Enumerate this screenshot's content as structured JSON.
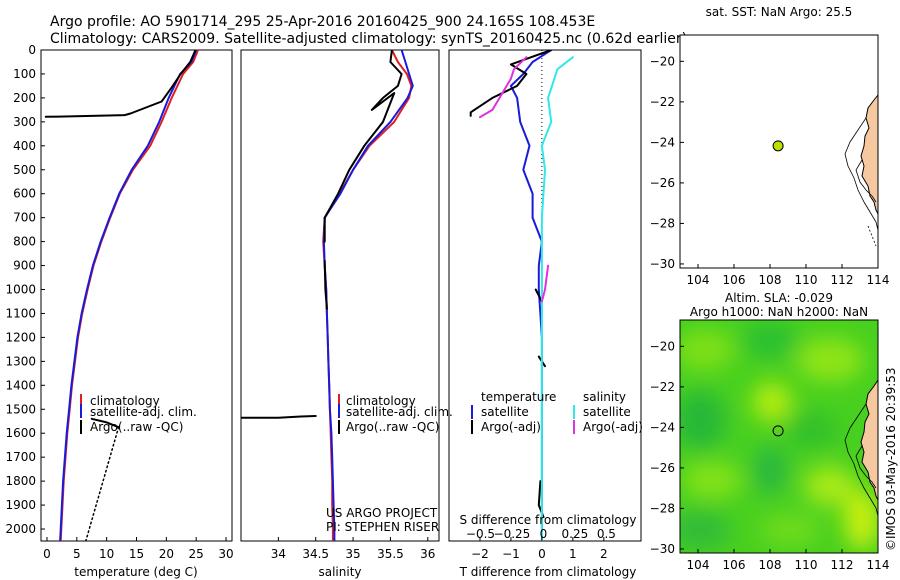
{
  "header": {
    "title_line1": "Argo profile: AO 5901714_295 25-Apr-2016 20160425_900 24.165S 108.453E",
    "title_line2": "Climatology: CARS2009. Satellite-adjusted climatology: synTS_20160425.nc (0.62d earlier)"
  },
  "side_text": "©IMOS 03-May-2016 20:39:53",
  "colors": {
    "climatology": "#e02020",
    "satellite": "#1a1adc",
    "argo": "#000000",
    "satellite_salinity": "#30e8e8",
    "argo_salinity_adj": "#e030e0",
    "land": "#f5c8a0",
    "marker": "#b8e000"
  },
  "chart_data": [
    {
      "id": "temperature",
      "type": "line",
      "xlabel": "temperature (deg C)",
      "xlim": [
        -1,
        31
      ],
      "ylim": [
        2050,
        0
      ],
      "xticks": [
        0,
        5,
        10,
        15,
        20,
        25,
        30
      ],
      "yticks": [
        0,
        100,
        200,
        300,
        400,
        500,
        600,
        700,
        800,
        900,
        1000,
        1100,
        1200,
        1300,
        1400,
        1500,
        1600,
        1700,
        1800,
        1900,
        2000
      ],
      "legend": [
        "climatology",
        "satellite-adj. clim.",
        "Argo(..raw -QC)"
      ],
      "series": [
        {
          "key": "clim",
          "points": [
            [
              25.3,
              0
            ],
            [
              24.5,
              50
            ],
            [
              22.8,
              100
            ],
            [
              20.9,
              200
            ],
            [
              19.2,
              300
            ],
            [
              17.3,
              400
            ],
            [
              14.4,
              500
            ],
            [
              12.2,
              600
            ],
            [
              10.6,
              700
            ],
            [
              9.1,
              800
            ],
            [
              7.8,
              900
            ],
            [
              6.8,
              1000
            ],
            [
              5.9,
              1100
            ],
            [
              5.2,
              1200
            ],
            [
              4.7,
              1300
            ],
            [
              4.2,
              1400
            ],
            [
              3.8,
              1500
            ],
            [
              3.4,
              1600
            ],
            [
              3.1,
              1700
            ],
            [
              2.8,
              1800
            ],
            [
              2.6,
              1900
            ],
            [
              2.4,
              2000
            ],
            [
              2.3,
              2050
            ]
          ]
        },
        {
          "key": "sat",
          "points": [
            [
              25.0,
              0
            ],
            [
              24.2,
              50
            ],
            [
              22.3,
              100
            ],
            [
              20.4,
              200
            ],
            [
              18.8,
              300
            ],
            [
              16.9,
              400
            ],
            [
              14.2,
              500
            ],
            [
              12.1,
              600
            ],
            [
              10.5,
              700
            ],
            [
              9.0,
              800
            ],
            [
              7.7,
              900
            ],
            [
              6.7,
              1000
            ],
            [
              5.8,
              1100
            ],
            [
              5.1,
              1200
            ],
            [
              4.6,
              1300
            ],
            [
              4.1,
              1400
            ],
            [
              3.7,
              1500
            ],
            [
              3.3,
              1600
            ],
            [
              3.0,
              1700
            ],
            [
              2.7,
              1800
            ],
            [
              2.5,
              1900
            ],
            [
              2.3,
              2000
            ],
            [
              2.2,
              2050
            ]
          ]
        },
        {
          "key": "argo",
          "points": [
            [
              24.8,
              5
            ],
            [
              24.0,
              50
            ],
            [
              22.4,
              100
            ],
            [
              20.8,
              160
            ],
            [
              19.2,
              215
            ],
            [
              14.0,
              265
            ],
            [
              13.0,
              272
            ],
            [
              2.0,
              278
            ],
            [
              -0.2,
              279
            ]
          ]
        },
        {
          "key": "argo",
          "points": [
            [
              7.5,
              1540
            ],
            [
              10.0,
              1555
            ],
            [
              12.0,
              1575
            ]
          ]
        },
        {
          "key": "argo_dotted",
          "points": [
            [
              12.0,
              1575
            ],
            [
              6.5,
              2050
            ]
          ]
        }
      ]
    },
    {
      "id": "salinity",
      "type": "line",
      "xlabel": "salinity",
      "xlim": [
        33.5,
        36.15
      ],
      "ylim": [
        2050,
        0
      ],
      "xticks": [
        34,
        34.5,
        35,
        35.5,
        36
      ],
      "legend": [
        "climatology",
        "satellite-adj. clim.",
        "Argo(..raw -QC)"
      ],
      "annotation": [
        "US ARGO PROJECT",
        "PI: STEPHEN RISER"
      ],
      "series": [
        {
          "key": "clim",
          "points": [
            [
              35.52,
              0
            ],
            [
              35.6,
              50
            ],
            [
              35.72,
              100
            ],
            [
              35.78,
              150
            ],
            [
              35.75,
              200
            ],
            [
              35.55,
              300
            ],
            [
              35.22,
              400
            ],
            [
              35.0,
              500
            ],
            [
              34.82,
              600
            ],
            [
              34.62,
              700
            ],
            [
              34.6,
              800
            ],
            [
              34.62,
              900
            ],
            [
              34.64,
              1000
            ],
            [
              34.65,
              1100
            ],
            [
              34.66,
              1200
            ],
            [
              34.67,
              1300
            ],
            [
              34.68,
              1400
            ],
            [
              34.69,
              1500
            ],
            [
              34.7,
              1600
            ],
            [
              34.71,
              1700
            ],
            [
              34.72,
              1800
            ],
            [
              34.72,
              1900
            ],
            [
              34.73,
              2000
            ],
            [
              34.73,
              2050
            ]
          ]
        },
        {
          "key": "sat",
          "points": [
            [
              35.65,
              0
            ],
            [
              35.7,
              50
            ],
            [
              35.75,
              100
            ],
            [
              35.8,
              150
            ],
            [
              35.73,
              200
            ],
            [
              35.5,
              300
            ],
            [
              35.2,
              400
            ],
            [
              35.0,
              500
            ],
            [
              34.83,
              600
            ],
            [
              34.62,
              700
            ],
            [
              34.61,
              800
            ],
            [
              34.62,
              900
            ],
            [
              34.64,
              1000
            ],
            [
              34.65,
              1100
            ],
            [
              34.66,
              1200
            ],
            [
              34.67,
              1300
            ],
            [
              34.68,
              1400
            ],
            [
              34.69,
              1500
            ],
            [
              34.71,
              1600
            ],
            [
              34.72,
              1700
            ],
            [
              34.73,
              1800
            ],
            [
              34.74,
              1900
            ],
            [
              34.75,
              2000
            ],
            [
              34.75,
              2050
            ]
          ]
        },
        {
          "key": "argo",
          "points": [
            [
              35.52,
              0
            ],
            [
              35.5,
              50
            ],
            [
              35.65,
              100
            ],
            [
              35.6,
              150
            ],
            [
              35.4,
              200
            ],
            [
              35.25,
              250
            ],
            [
              35.55,
              180
            ],
            [
              35.4,
              300
            ],
            [
              35.15,
              400
            ],
            [
              34.95,
              500
            ],
            [
              34.8,
              600
            ],
            [
              34.62,
              700
            ],
            [
              34.62,
              800
            ]
          ]
        },
        {
          "key": "argo",
          "points": [
            [
              34.62,
              880
            ],
            [
              34.63,
              1000
            ],
            [
              34.65,
              1080
            ]
          ]
        },
        {
          "key": "argo",
          "points": [
            [
              33.5,
              1535
            ],
            [
              34.0,
              1535
            ],
            [
              34.3,
              1530
            ],
            [
              34.5,
              1528
            ]
          ]
        }
      ]
    },
    {
      "id": "difference",
      "type": "line",
      "xlabel": "T difference from climatology",
      "top_label": "S difference from climatology",
      "xlim": [
        -3,
        3.2
      ],
      "ylim": [
        2050,
        0
      ],
      "xticks_T": [
        -2,
        -1,
        0,
        1,
        2
      ],
      "xticks_S": [
        -0.5,
        -0.25,
        0,
        0.25,
        0.5
      ],
      "legend_left_title": "temperature",
      "legend_right_title": "salinity",
      "legend": [
        "satellite",
        "Argo(-adj)",
        "satellite",
        "Argo(-adj)"
      ],
      "series": [
        {
          "key": "sat",
          "points": [
            [
              0.3,
              0
            ],
            [
              -0.3,
              50
            ],
            [
              -0.6,
              100
            ],
            [
              -1.0,
              150
            ],
            [
              -0.8,
              200
            ],
            [
              -0.7,
              300
            ],
            [
              -0.4,
              400
            ],
            [
              -0.6,
              500
            ],
            [
              -0.3,
              600
            ],
            [
              -0.3,
              700
            ],
            [
              0.0,
              800
            ],
            [
              -0.1,
              900
            ],
            [
              -0.1,
              1000
            ],
            [
              0.0,
              1200
            ],
            [
              0.0,
              1500
            ],
            [
              0.0,
              2000
            ]
          ]
        },
        {
          "key": "argo",
          "points": [
            [
              0.3,
              0
            ],
            [
              -1.0,
              60
            ],
            [
              -0.5,
              100
            ],
            [
              -0.8,
              150
            ],
            [
              -1.6,
              200
            ],
            [
              -2.3,
              260
            ],
            [
              -2.3,
              275
            ]
          ]
        },
        {
          "key": "argo",
          "points": [
            [
              -0.2,
              1000
            ],
            [
              0.0,
              1050
            ]
          ]
        },
        {
          "key": "argo",
          "points": [
            [
              -0.1,
              1280
            ],
            [
              0.1,
              1320
            ]
          ]
        },
        {
          "key": "argo",
          "points": [
            [
              -0.05,
              1800
            ],
            [
              -0.1,
              1900
            ],
            [
              0.05,
              1950
            ]
          ]
        },
        {
          "key": "sat_s",
          "points": [
            [
              1.0,
              30
            ],
            [
              0.5,
              80
            ],
            [
              0.2,
              200
            ],
            [
              0.3,
              300
            ],
            [
              0.0,
              400
            ],
            [
              0.1,
              500
            ],
            [
              0.0,
              700
            ],
            [
              0.0,
              900
            ],
            [
              0.0,
              1200
            ],
            [
              0.0,
              1600
            ],
            [
              0.0,
              2050
            ]
          ]
        },
        {
          "key": "argo_s",
          "points": [
            [
              -0.5,
              30
            ],
            [
              -0.9,
              80
            ],
            [
              -1.0,
              120
            ],
            [
              -1.6,
              250
            ],
            [
              -2.0,
              280
            ]
          ]
        },
        {
          "key": "argo_s",
          "points": [
            [
              0.2,
              900
            ],
            [
              0.1,
              1000
            ],
            [
              0.0,
              1050
            ]
          ]
        }
      ]
    },
    {
      "id": "sst_map",
      "type": "map",
      "title": "sat. SST: NaN Argo: 25.5",
      "xlim": [
        103,
        114
      ],
      "ylim": [
        -30.2,
        -18.7
      ],
      "xticks": [
        104,
        106,
        108,
        110,
        112,
        114
      ],
      "yticks": [
        -20,
        -22,
        -24,
        -26,
        -28,
        -30
      ],
      "marker": [
        108.45,
        -24.17
      ]
    },
    {
      "id": "sla_map",
      "type": "heatmap",
      "title_line1": "Altim. SLA: -0.029",
      "title_line2": "Argo h1000: NaN h2000: NaN",
      "xlim": [
        103,
        114
      ],
      "ylim": [
        -30.2,
        -18.7
      ],
      "xticks": [
        104,
        106,
        108,
        110,
        112,
        114
      ],
      "yticks": [
        -20,
        -22,
        -24,
        -26,
        -28,
        -30
      ],
      "marker": [
        108.45,
        -24.17
      ]
    }
  ]
}
